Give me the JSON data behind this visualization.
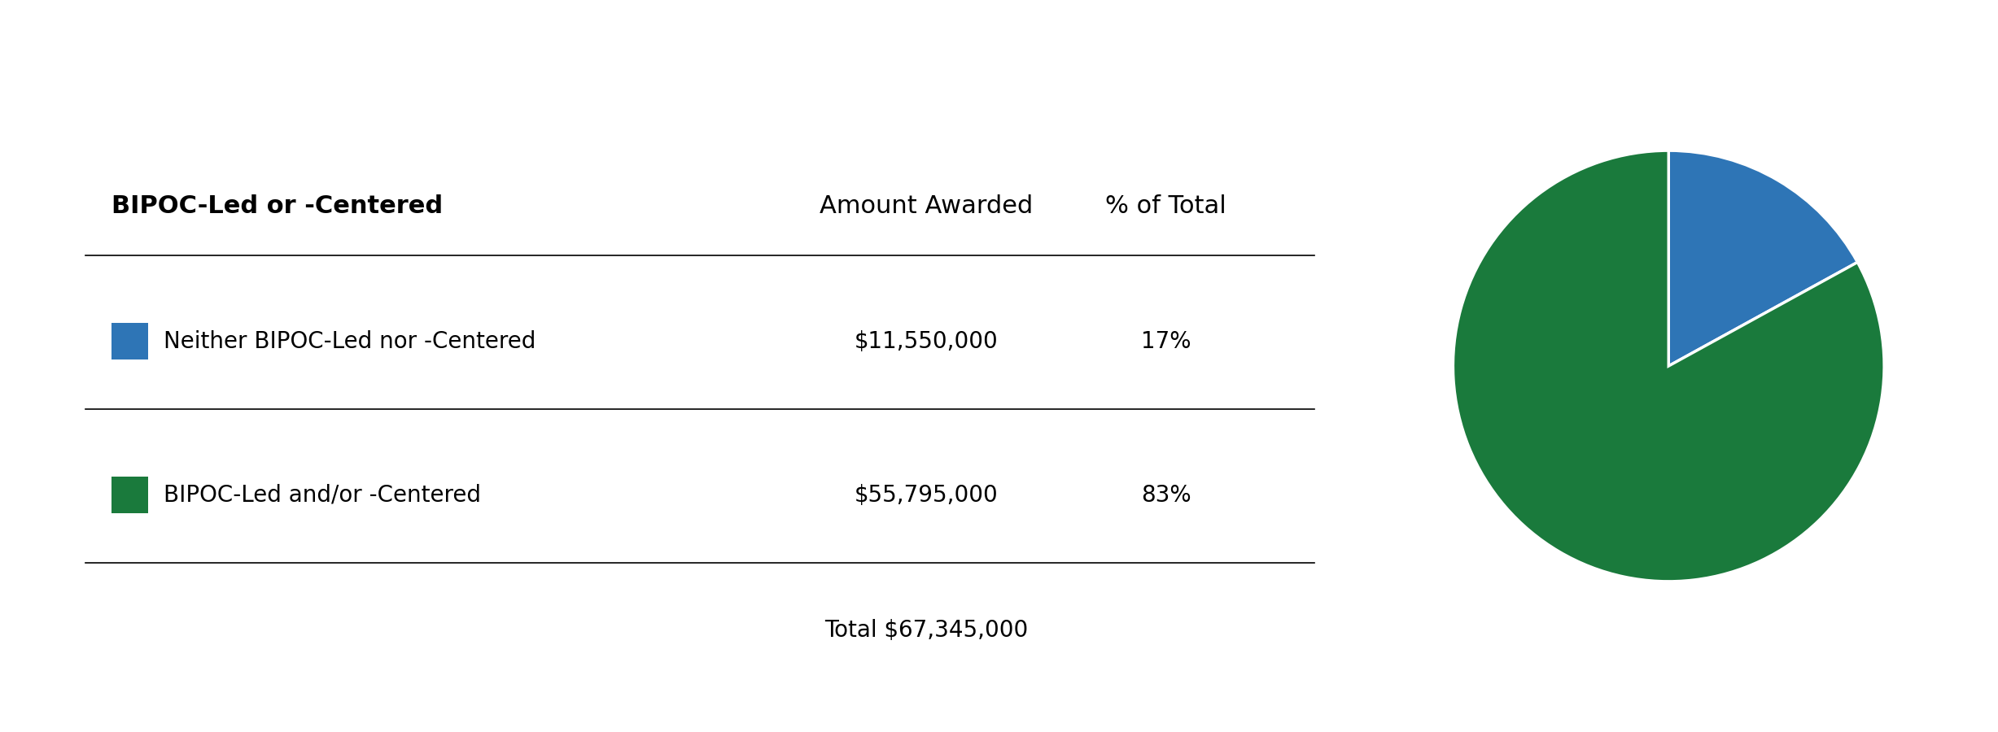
{
  "title_col1": "BIPOC-Led or -Centered",
  "title_col2": "Amount Awarded",
  "title_col3": "% of Total",
  "row1_label": "Neither BIPOC-Led nor -Centered",
  "row1_amount": "$11,550,000",
  "row1_pct": "17%",
  "row1_color": "#2E75B6",
  "row2_label": "BIPOC-Led and/or -Centered",
  "row2_amount": "$55,795,000",
  "row2_pct": "83%",
  "row2_color": "#1A7A3C",
  "total_label": "Total $67,345,000",
  "pie_values": [
    17,
    83
  ],
  "pie_colors": [
    "#2E75B6",
    "#1A7A3C"
  ],
  "pie_startangle": 90,
  "background_color": "#ffffff",
  "text_color": "#000000",
  "line_color": "#000000",
  "header_fontsize": 22,
  "row_fontsize": 20,
  "total_fontsize": 20
}
